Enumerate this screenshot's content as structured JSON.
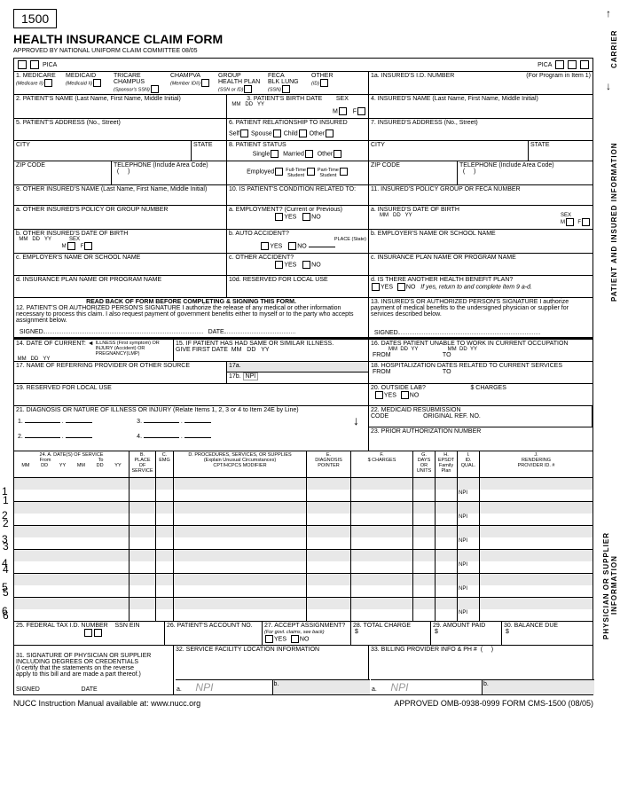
{
  "formNumber": "1500",
  "title": "HEALTH INSURANCE CLAIM FORM",
  "subtitle": "APPROVED BY NATIONAL UNIFORM CLAIM COMMITTEE 08/05",
  "pica": "PICA",
  "carrier": "CARRIER",
  "patientInsured": "PATIENT AND INSURED INFORMATION",
  "physicianSupplier": "PHYSICIAN OR SUPPLIER INFORMATION",
  "box1": {
    "medicare": "MEDICARE",
    "medicaid": "MEDICAID",
    "tricare": "TRICARE\nCHAMPUS",
    "champva": "CHAMPVA",
    "group": "GROUP\nHEALTH PLAN",
    "feca": "FECA\nBLK LUNG",
    "other": "OTHER",
    "medicare_sub": "(Medicare #)",
    "medicaid_sub": "(Medicaid  #)",
    "tricare_sub": "(Sponsor's SSN)",
    "champva_sub": "(Member ID#)",
    "group_sub": "(SSN or ID)",
    "feca_sub": "(SSN)",
    "other_sub": "(ID)"
  },
  "box1a": {
    "label": "1a. INSURED'S I.D. NUMBER",
    "note": "(For Program in Item 1)"
  },
  "box2": "2. PATIENT'S NAME (Last Name, First Name, Middle Initial)",
  "box3": {
    "label": "3. PATIENT'S BIRTH DATE",
    "sex": "SEX",
    "mm": "MM",
    "dd": "DD",
    "yy": "YY",
    "m": "M",
    "f": "F"
  },
  "box4": "4. INSURED'S NAME (Last Name, First Name, Middle Initial)",
  "box5": "5. PATIENT'S ADDRESS (No., Street)",
  "box6": {
    "label": "6. PATIENT RELATIONSHIP TO INSURED",
    "self": "Self",
    "spouse": "Spouse",
    "child": "Child",
    "other": "Other"
  },
  "box7": "7. INSURED'S ADDRESS (No., Street)",
  "city": "CITY",
  "state": "STATE",
  "zip": "ZIP CODE",
  "phone": "TELEPHONE (Include Area Code)",
  "box8": {
    "label": "8. PATIENT STATUS",
    "single": "Single",
    "married": "Married",
    "other": "Other",
    "employed": "Employed",
    "fulltime": "Full-Time\nStudent",
    "parttime": "Part-Time\nStudent"
  },
  "box9": "9. OTHER INSURED'S NAME (Last Name, First Name, Middle Initial)",
  "box9a": "a. OTHER INSURED'S POLICY OR GROUP NUMBER",
  "box9b": {
    "label": "b. OTHER INSURED'S DATE OF BIRTH",
    "sex": "SEX"
  },
  "box9c": "c. EMPLOYER'S NAME OR SCHOOL NAME",
  "box9d": "d. INSURANCE PLAN NAME OR PROGRAM NAME",
  "box10": {
    "label": "10. IS PATIENT'S CONDITION RELATED TO:",
    "a": "a. EMPLOYMENT? (Current or Previous)",
    "b": "b. AUTO ACCIDENT?",
    "c": "c. OTHER ACCIDENT?",
    "yes": "YES",
    "no": "NO",
    "place": "PLACE (State)"
  },
  "box10d": "10d. RESERVED FOR LOCAL USE",
  "box11": "11. INSURED'S POLICY GROUP OR FECA NUMBER",
  "box11a": {
    "label": "a. INSURED'S DATE OF BIRTH",
    "sex": "SEX"
  },
  "box11b": "b. EMPLOYER'S NAME OR SCHOOL NAME",
  "box11c": "c. INSURANCE PLAN NAME OR PROGRAM NAME",
  "box11d": {
    "label": "d. IS THERE ANOTHER HEALTH BENEFIT PLAN?",
    "note": "If yes, return to and complete item 9 a-d."
  },
  "readBack": "READ BACK OF FORM BEFORE COMPLETING & SIGNING THIS FORM.",
  "box12": "12. PATIENT'S OR AUTHORIZED PERSON'S SIGNATURE  I authorize the release of any medical or other information necessary to process this claim. I also request payment of government benefits either to myself or to the party who accepts assignment below.",
  "box13": "13. INSURED'S OR AUTHORIZED PERSON'S SIGNATURE I authorize payment of medical benefits to the undersigned physician or supplier for services described below.",
  "signed": "SIGNED",
  "date": "DATE",
  "box14": {
    "label": "14. DATE OF CURRENT:",
    "sub": "ILLNESS (First symptom) OR\nINJURY (Accident) OR\nPREGNANCY(LMP)"
  },
  "box15": "15. IF PATIENT HAS HAD SAME OR SIMILAR ILLNESS.\n     GIVE FIRST DATE",
  "box16": {
    "label": "16. DATES PATIENT UNABLE TO WORK IN CURRENT OCCUPATION",
    "from": "FROM",
    "to": "TO"
  },
  "box17": "17. NAME OF REFERRING PROVIDER OR OTHER SOURCE",
  "box17a": "17a.",
  "box17b": "17b.",
  "npi": "NPI",
  "box18": {
    "label": "18. HOSPITALIZATION DATES RELATED TO CURRENT SERVICES",
    "from": "FROM",
    "to": "TO"
  },
  "box19": "19. RESERVED FOR LOCAL USE",
  "box20": {
    "label": "20. OUTSIDE LAB?",
    "charges": "$ CHARGES"
  },
  "box21": "21. DIAGNOSIS OR NATURE OF ILLNESS OR INJURY (Relate Items 1, 2, 3 or 4 to Item 24E by Line)",
  "box22": {
    "label": "22. MEDICAID RESUBMISSION\n     CODE",
    "orig": "ORIGINAL REF. NO."
  },
  "box23": "23. PRIOR AUTHORIZATION NUMBER",
  "box24hdr": {
    "a": "24. A.        DATE(S) OF SERVICE",
    "from": "From",
    "to": "To",
    "b": "B.\nPLACE OF\nSERVICE",
    "c": "C.\nEMG",
    "d": "D. PROCEDURES, SERVICES, OR SUPPLIES\n(Explain Unusual Circumstances)\nCPT/HCPCS            MODIFIER",
    "e": "E.\nDIAGNOSIS\nPOINTER",
    "f": "F.\n$ CHARGES",
    "g": "G.\nDAYS\nOR\nUNITS",
    "h": "H.\nEPSDT\nFamily\nPlan",
    "i": "I.\nID.\nQUAL.",
    "j": "J.\nRENDERING\nPROVIDER ID. #",
    "mm": "MM",
    "dd": "DD",
    "yy": "YY"
  },
  "box25": {
    "label": "25. FEDERAL TAX I.D. NUMBER",
    "ssn": "SSN",
    "ein": "EIN"
  },
  "box26": "26. PATIENT'S ACCOUNT NO.",
  "box27": {
    "label": "27. ACCEPT ASSIGNMENT?",
    "sub": "(For govt. claims, see back)"
  },
  "box28": "28. TOTAL CHARGE",
  "box29": "29. AMOUNT PAID",
  "box30": "30. BALANCE DUE",
  "box31": "31. SIGNATURE OF PHYSICIAN OR SUPPLIER\nINCLUDING DEGREES OR CREDENTIALS\n(I certify that the statements on the reverse\napply to this bill and are made a part thereof.)",
  "box32": "32. SERVICE FACILITY LOCATION INFORMATION",
  "box33": "33. BILLING PROVIDER INFO & PH #",
  "dollar": "$",
  "footer": {
    "left": "NUCC Instruction Manual available at: www.nucc.org",
    "right": "APPROVED OMB-0938-0999 FORM CMS-1500 (08/05)"
  },
  "yes": "YES",
  "no": "NO",
  "diag": {
    "d1": "1.",
    "d2": "2.",
    "d3": "3.",
    "d4": "4."
  },
  "ab": {
    "a": "a.",
    "b": "b."
  }
}
